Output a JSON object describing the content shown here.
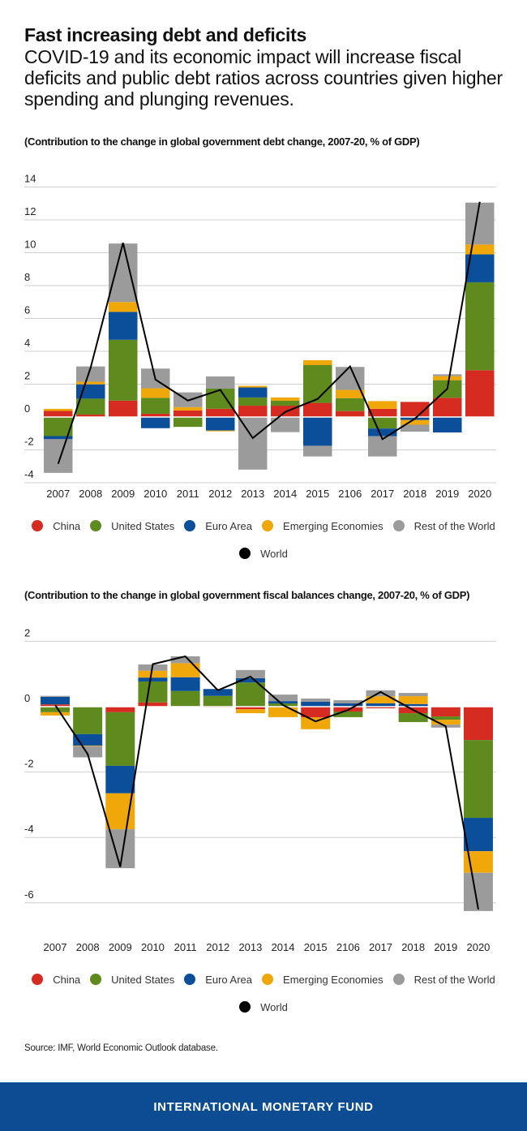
{
  "header": {
    "title": "Fast increasing debt and deficits",
    "subtitle": "COVID-19 and its economic impact will increase fiscal deficits and public debt ratios across countries given higher spending and plunging revenues."
  },
  "series_colors": {
    "China": "#d62b20",
    "United States": "#5e8a1e",
    "Euro Area": "#0b4f9a",
    "Emerging Economies": "#f0a70a",
    "Rest of the World": "#9b9b9b",
    "World": "#000000"
  },
  "legend": {
    "items": [
      {
        "label": "China",
        "color": "#d62b20"
      },
      {
        "label": "United States",
        "color": "#5e8a1e"
      },
      {
        "label": "Euro Area",
        "color": "#0b4f9a"
      },
      {
        "label": "Emerging Economies",
        "color": "#f0a70a"
      },
      {
        "label": "Rest of the World",
        "color": "#9b9b9b"
      }
    ],
    "world": {
      "label": "World",
      "color": "#000000"
    }
  },
  "chart_data": [
    {
      "type": "bar",
      "stacked": true,
      "title": "(Contribution to the change in global government debt change, 2007-20, % of GDP)",
      "xlabel": "",
      "ylabel": "",
      "categories": [
        "2007",
        "2008",
        "2009",
        "2010",
        "2011",
        "2012",
        "2013",
        "2014",
        "2015",
        "2106",
        "2017",
        "2018",
        "2019",
        "2020"
      ],
      "yticks": [
        -4,
        -2,
        0,
        2,
        4,
        6,
        8,
        10,
        12,
        14
      ],
      "ylim": [
        -4,
        14
      ],
      "grid": true,
      "legend_position": "bottom",
      "series": [
        {
          "name": "China",
          "values": [
            0.37,
            0.15,
            1.0,
            0.2,
            0.4,
            0.5,
            0.69,
            0.69,
            0.86,
            0.36,
            0.5,
            0.92,
            1.17,
            2.85
          ]
        },
        {
          "name": "United States",
          "values": [
            -1.16,
            0.97,
            3.7,
            0.97,
            -0.6,
            1.23,
            0.5,
            0.3,
            2.3,
            0.79,
            -0.7,
            0.0,
            1.07,
            5.35
          ]
        },
        {
          "name": "Euro Area",
          "values": [
            -0.19,
            0.87,
            1.7,
            -0.68,
            0.0,
            -0.82,
            0.61,
            0.0,
            -1.75,
            0.0,
            -0.47,
            -0.18,
            -0.94,
            1.7
          ]
        },
        {
          "name": "Emerging Economies",
          "values": [
            0.13,
            0.16,
            0.6,
            0.58,
            0.2,
            -0.05,
            0.1,
            0.2,
            0.3,
            0.5,
            0.47,
            -0.29,
            0.25,
            0.6
          ]
        },
        {
          "name": "Rest of the World",
          "values": [
            -2.05,
            0.93,
            3.56,
            1.2,
            0.9,
            0.74,
            -3.2,
            -0.92,
            -0.65,
            1.4,
            -1.23,
            -0.42,
            0.11,
            2.55
          ]
        },
        {
          "name": "World",
          "type": "line",
          "values": [
            -2.85,
            3.0,
            10.6,
            2.28,
            1.0,
            1.65,
            -1.28,
            0.31,
            1.1,
            3.08,
            -1.35,
            -0.1,
            1.72,
            13.1
          ]
        }
      ]
    },
    {
      "type": "bar",
      "stacked": true,
      "title": "(Contribution to the change in global government fiscal balances change, 2007-20, % of GDP)",
      "xlabel": "",
      "ylabel": "",
      "categories": [
        "2007",
        "2008",
        "2009",
        "2010",
        "2011",
        "2012",
        "2013",
        "2014",
        "2015",
        "2106",
        "2017",
        "2018",
        "2019",
        "2020"
      ],
      "yticks": [
        -6,
        -4,
        -2,
        0,
        2
      ],
      "ylim": [
        -6.3,
        2
      ],
      "grid": true,
      "legend_position": "bottom",
      "series": [
        {
          "name": "China",
          "values": [
            0.07,
            0.0,
            -0.17,
            0.13,
            0.02,
            -0.02,
            -0.08,
            -0.02,
            -0.33,
            -0.15,
            -0.05,
            -0.2,
            -0.3,
            -1.02
          ]
        },
        {
          "name": "United States",
          "values": [
            -0.17,
            -0.84,
            -1.64,
            0.64,
            0.46,
            0.33,
            0.74,
            0.1,
            0.0,
            -0.17,
            0.0,
            -0.27,
            -0.1,
            -2.38
          ]
        },
        {
          "name": "Euro Area",
          "values": [
            0.23,
            -0.35,
            -0.84,
            0.12,
            0.42,
            0.21,
            0.13,
            0.07,
            0.15,
            0.1,
            0.1,
            0.08,
            0.0,
            -1.02
          ]
        },
        {
          "name": "Emerging Economies",
          "values": [
            -0.1,
            -0.02,
            -1.1,
            0.21,
            0.43,
            0.0,
            -0.12,
            -0.3,
            -0.36,
            0.0,
            0.22,
            0.24,
            -0.15,
            -0.66
          ]
        },
        {
          "name": "Rest of the World",
          "values": [
            0.03,
            -0.34,
            -1.19,
            0.19,
            0.21,
            0.0,
            0.25,
            0.2,
            0.1,
            0.1,
            0.18,
            0.1,
            -0.09,
            -1.17
          ]
        },
        {
          "name": "World",
          "type": "line",
          "values": [
            0.05,
            -1.45,
            -4.9,
            1.3,
            1.54,
            0.5,
            0.92,
            0.05,
            -0.45,
            -0.1,
            0.45,
            -0.1,
            -0.6,
            -6.2
          ]
        }
      ]
    }
  ],
  "source": "Source: IMF, World Economic Outlook database.",
  "footer": {
    "label": "INTERNATIONAL MONETARY FUND"
  }
}
